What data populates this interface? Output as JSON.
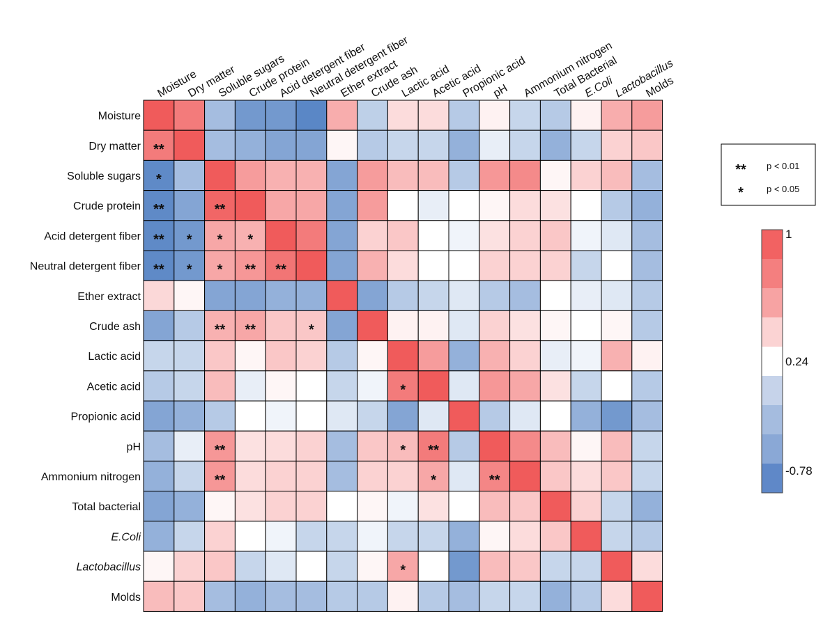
{
  "chart_data": {
    "type": "heatmap",
    "variables": [
      "Moisture",
      "Dry matter",
      "Soluble sugars",
      "Crude protein",
      "Acid detergent fiber",
      "Neutral detergent fiber",
      "Ether extract",
      "Crude ash",
      "Lactic acid",
      "Acetic acid",
      "Propionic acid",
      "pH",
      "Ammonium nitrogen",
      "Total bacterial",
      "E.Coli",
      "Lactobacillus",
      "Molds"
    ],
    "column_labels": [
      "Moisture",
      "Dry matter",
      "Soluble sugars",
      "Crude protein",
      "Acid detergent fiber",
      "Neutral detergent fiber",
      "Ether extract",
      "Crude ash",
      "Lactic acid",
      "Acetic acid",
      "Propionic acid",
      "pH",
      "Ammonium nitrogen",
      "Total Bacterial",
      "E.Coli",
      "Lactobacillus",
      "Molds"
    ],
    "italic_labels": [
      "E.Coli",
      "Lactobacillus"
    ],
    "values": [
      [
        1,
        0.85,
        -0.3,
        -0.6,
        -0.6,
        -0.75,
        0.62,
        -0.15,
        0.4,
        0.4,
        -0.2,
        0.3,
        -0.1,
        -0.2,
        0.3,
        0.62,
        0.7
      ],
      [
        0.85,
        1,
        -0.3,
        -0.4,
        -0.5,
        -0.5,
        0.28,
        -0.2,
        -0.1,
        -0.1,
        -0.4,
        0.1,
        -0.1,
        -0.4,
        -0.1,
        0.45,
        0.5
      ],
      [
        -0.72,
        -0.3,
        1,
        0.7,
        0.6,
        0.6,
        -0.5,
        0.7,
        0.55,
        0.55,
        -0.2,
        0.72,
        0.78,
        0.28,
        0.45,
        0.55,
        -0.3
      ],
      [
        -0.72,
        -0.5,
        0.95,
        1,
        0.65,
        0.65,
        -0.5,
        0.7,
        0.24,
        0.1,
        0.24,
        0.28,
        0.4,
        0.38,
        0.24,
        -0.2,
        -0.4
      ],
      [
        -0.72,
        -0.6,
        0.65,
        0.6,
        1,
        0.85,
        -0.5,
        0.45,
        0.5,
        0.24,
        0.15,
        0.38,
        0.45,
        0.5,
        0.15,
        0.05,
        -0.3
      ],
      [
        -0.72,
        -0.6,
        0.65,
        0.72,
        0.88,
        1,
        -0.5,
        0.6,
        0.4,
        0.24,
        0.24,
        0.45,
        0.45,
        0.45,
        -0.1,
        0.24,
        -0.3
      ],
      [
        0.42,
        0.28,
        -0.5,
        -0.5,
        -0.4,
        -0.4,
        1,
        -0.5,
        -0.2,
        -0.1,
        0.05,
        -0.2,
        -0.3,
        0.24,
        0.1,
        0.05,
        -0.2
      ],
      [
        -0.5,
        -0.2,
        0.6,
        0.65,
        0.5,
        0.5,
        -0.5,
        1,
        0.3,
        0.3,
        0.05,
        0.45,
        0.38,
        0.28,
        0.24,
        0.28,
        -0.2
      ],
      [
        -0.1,
        -0.1,
        0.5,
        0.28,
        0.5,
        0.45,
        -0.2,
        0.28,
        1,
        0.7,
        -0.4,
        0.6,
        0.45,
        0.1,
        0.15,
        0.6,
        0.3
      ],
      [
        -0.2,
        -0.1,
        0.55,
        0.1,
        0.28,
        0.24,
        -0.1,
        0.15,
        0.85,
        1,
        0.05,
        0.72,
        0.65,
        0.38,
        -0.1,
        0.24,
        -0.2
      ],
      [
        -0.5,
        -0.4,
        -0.2,
        0.24,
        0.15,
        0.24,
        0.05,
        -0.1,
        -0.5,
        0.05,
        1,
        -0.2,
        0.05,
        0.24,
        -0.4,
        -0.6,
        -0.3
      ],
      [
        -0.3,
        0.1,
        0.72,
        0.38,
        0.4,
        0.45,
        -0.3,
        0.5,
        0.55,
        0.85,
        -0.2,
        1,
        0.78,
        0.55,
        0.28,
        0.55,
        -0.1
      ],
      [
        -0.4,
        -0.1,
        0.72,
        0.4,
        0.45,
        0.45,
        -0.3,
        0.45,
        0.45,
        0.65,
        0.05,
        0.8,
        1,
        0.5,
        0.4,
        0.5,
        -0.1
      ],
      [
        -0.5,
        -0.4,
        0.28,
        0.38,
        0.45,
        0.45,
        0.24,
        0.28,
        0.15,
        0.38,
        0.24,
        0.55,
        0.5,
        1,
        0.45,
        -0.1,
        -0.4
      ],
      [
        -0.4,
        -0.1,
        0.45,
        0.24,
        0.15,
        -0.1,
        -0.1,
        0.15,
        -0.1,
        -0.1,
        -0.4,
        0.28,
        0.4,
        0.5,
        1,
        -0.1,
        -0.2
      ],
      [
        0.28,
        0.45,
        0.5,
        -0.1,
        0.05,
        0.24,
        -0.1,
        0.28,
        0.65,
        0.24,
        -0.6,
        0.55,
        0.5,
        -0.1,
        -0.1,
        1,
        0.4
      ],
      [
        0.55,
        0.5,
        -0.3,
        -0.4,
        -0.3,
        -0.3,
        -0.2,
        -0.2,
        0.3,
        -0.2,
        -0.3,
        -0.1,
        -0.1,
        -0.4,
        -0.2,
        0.4,
        1
      ]
    ],
    "value_range": [
      -0.78,
      1
    ],
    "significance": [
      {
        "row": 1,
        "col": 0,
        "mark": "**"
      },
      {
        "row": 2,
        "col": 0,
        "mark": "*"
      },
      {
        "row": 3,
        "col": 0,
        "mark": "**"
      },
      {
        "row": 3,
        "col": 2,
        "mark": "**"
      },
      {
        "row": 4,
        "col": 0,
        "mark": "**"
      },
      {
        "row": 4,
        "col": 1,
        "mark": "*"
      },
      {
        "row": 4,
        "col": 2,
        "mark": "*"
      },
      {
        "row": 4,
        "col": 3,
        "mark": "*"
      },
      {
        "row": 5,
        "col": 0,
        "mark": "**"
      },
      {
        "row": 5,
        "col": 1,
        "mark": "*"
      },
      {
        "row": 5,
        "col": 2,
        "mark": "*"
      },
      {
        "row": 5,
        "col": 3,
        "mark": "**"
      },
      {
        "row": 5,
        "col": 4,
        "mark": "**"
      },
      {
        "row": 7,
        "col": 2,
        "mark": "**"
      },
      {
        "row": 7,
        "col": 3,
        "mark": "**"
      },
      {
        "row": 7,
        "col": 5,
        "mark": "*"
      },
      {
        "row": 9,
        "col": 8,
        "mark": "*"
      },
      {
        "row": 11,
        "col": 2,
        "mark": "**"
      },
      {
        "row": 11,
        "col": 8,
        "mark": "*"
      },
      {
        "row": 11,
        "col": 9,
        "mark": "**"
      },
      {
        "row": 12,
        "col": 2,
        "mark": "**"
      },
      {
        "row": 12,
        "col": 9,
        "mark": "*"
      },
      {
        "row": 12,
        "col": 11,
        "mark": "**"
      },
      {
        "row": 15,
        "col": 8,
        "mark": "*"
      }
    ],
    "legend": [
      {
        "symbol": "**",
        "label": "p < 0.01"
      },
      {
        "symbol": "*",
        "label": "p < 0.05"
      }
    ],
    "colorbar": {
      "labels": [
        "1",
        "0.24",
        "-0.78"
      ],
      "label_values": [
        1,
        0.24,
        -0.78
      ],
      "colors": [
        "#f26262",
        "#f47f7f",
        "#f7a3a3",
        "#fbd3d3",
        "#ffffff",
        "#c6d3ea",
        "#a5bcdf",
        "#8aa8d6",
        "#5f88c8"
      ]
    },
    "colors": {
      "high": "#f05b5b",
      "mid": "#ffffff",
      "low": "#5583c4",
      "grid": "#000000"
    },
    "title": "",
    "xlabel": "",
    "ylabel": ""
  }
}
